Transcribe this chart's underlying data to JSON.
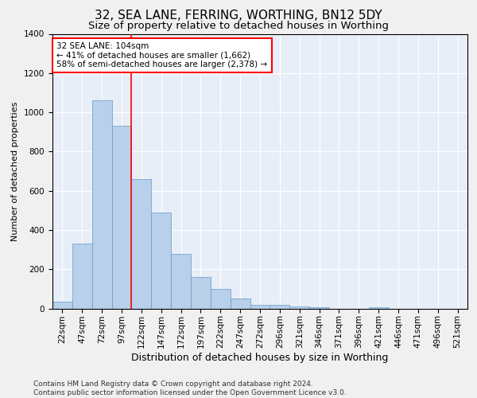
{
  "title": "32, SEA LANE, FERRING, WORTHING, BN12 5DY",
  "subtitle": "Size of property relative to detached houses in Worthing",
  "xlabel": "Distribution of detached houses by size in Worthing",
  "ylabel": "Number of detached properties",
  "categories": [
    "22sqm",
    "47sqm",
    "72sqm",
    "97sqm",
    "122sqm",
    "147sqm",
    "172sqm",
    "197sqm",
    "222sqm",
    "247sqm",
    "272sqm",
    "296sqm",
    "321sqm",
    "346sqm",
    "371sqm",
    "396sqm",
    "421sqm",
    "446sqm",
    "471sqm",
    "496sqm",
    "521sqm"
  ],
  "values": [
    35,
    330,
    1060,
    930,
    660,
    490,
    280,
    160,
    100,
    50,
    20,
    20,
    10,
    5,
    0,
    0,
    5,
    0,
    0,
    0,
    0
  ],
  "bar_color": "#b8d0ea",
  "bar_edge_color": "#6699cc",
  "background_color": "#e8eef8",
  "grid_color": "#ffffff",
  "vline_x": 3.5,
  "vline_color": "red",
  "annotation_text": "32 SEA LANE: 104sqm\n← 41% of detached houses are smaller (1,662)\n58% of semi-detached houses are larger (2,378) →",
  "annotation_box_color": "red",
  "ylim": [
    0,
    1400
  ],
  "yticks": [
    0,
    200,
    400,
    600,
    800,
    1000,
    1200,
    1400
  ],
  "footer": "Contains HM Land Registry data © Crown copyright and database right 2024.\nContains public sector information licensed under the Open Government Licence v3.0.",
  "title_fontsize": 11,
  "subtitle_fontsize": 9.5,
  "xlabel_fontsize": 9,
  "ylabel_fontsize": 8,
  "tick_fontsize": 7.5,
  "annotation_fontsize": 7.5,
  "footer_fontsize": 6.5
}
